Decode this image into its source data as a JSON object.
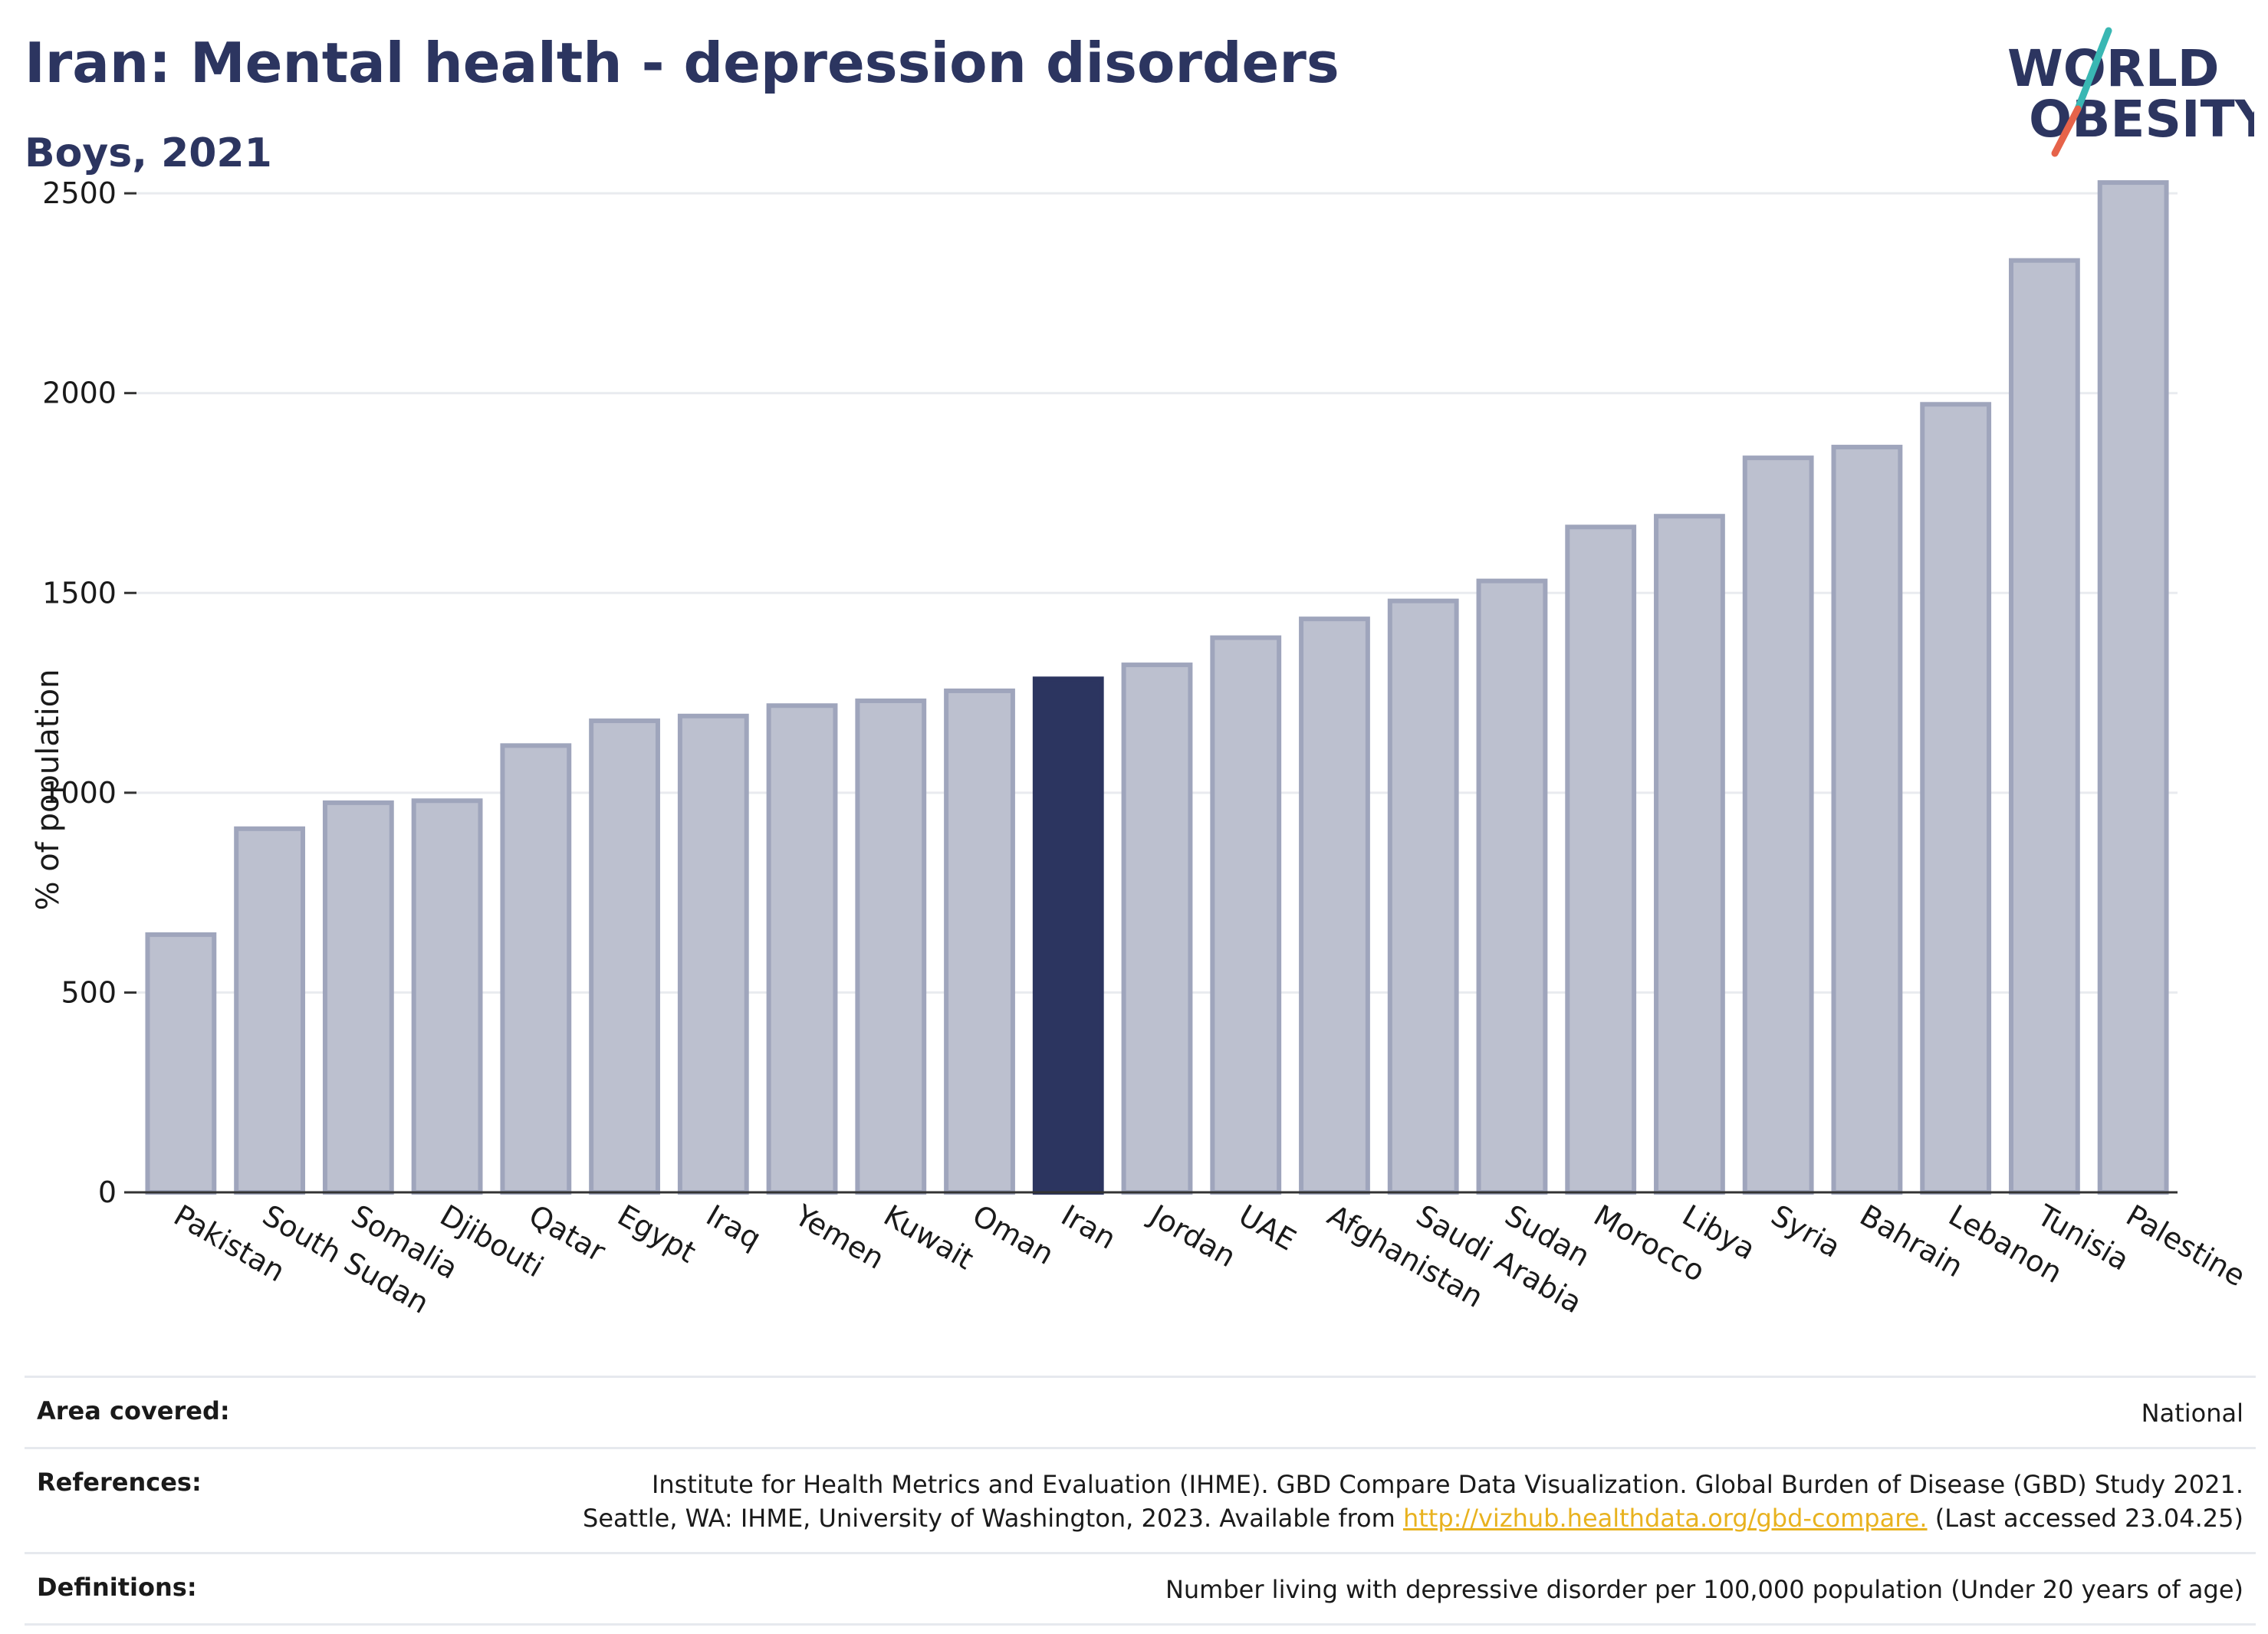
{
  "header": {
    "title": "Iran: Mental health - depression disorders",
    "subtitle": "Boys, 2021"
  },
  "logo": {
    "line1": "WORLD",
    "line2": "OBESITY",
    "colors": {
      "text": "#2c3560",
      "slash_teal": "#39b7b3",
      "slash_red": "#e6634a"
    }
  },
  "chart_data": {
    "type": "bar",
    "ylabel": "% of population",
    "ylim": [
      0,
      2600
    ],
    "yticks": [
      0,
      500,
      1000,
      1500,
      2000,
      2500
    ],
    "grid": true,
    "categories": [
      "Pakistan",
      "South Sudan",
      "Somalia",
      "Djibouti",
      "Qatar",
      "Egypt",
      "Iraq",
      "Yemen",
      "Kuwait",
      "Oman",
      "Iran",
      "Jordan",
      "UAE",
      "Afghanistan",
      "Saudi Arabia",
      "Sudan",
      "Morocco",
      "Libya",
      "Syria",
      "Bahrain",
      "Lebanon",
      "Tunisia",
      "Palestine"
    ],
    "values": [
      645,
      910,
      975,
      980,
      1118,
      1180,
      1192,
      1218,
      1230,
      1255,
      1285,
      1320,
      1388,
      1435,
      1480,
      1530,
      1665,
      1692,
      1838,
      1865,
      1972,
      2332,
      2527
    ],
    "highlight": "Iran",
    "colors": {
      "bar": "#bcc0cf",
      "bar_edge": "#9fa5bc",
      "highlight": "#2c3560",
      "grid": "#e9ebef",
      "axis": "#333333"
    }
  },
  "footer": {
    "area_label": "Area covered:",
    "area_value": "National",
    "references_label": "References:",
    "references_line1": "Institute for Health Metrics and Evaluation (IHME). GBD Compare Data Visualization. Global Burden of Disease (GBD) Study 2021.",
    "references_line2_pre": "Seattle, WA: IHME, University of Washington, 2023. Available from",
    "references_link": "http://vizhub.healthdata.org/gbd-compare.",
    "references_line2_post": "(Last accessed 23.04.25)",
    "definitions_label": "Definitions:",
    "definitions_value": "Number living with depressive disorder per 100,000 population (Under 20 years of age)"
  }
}
